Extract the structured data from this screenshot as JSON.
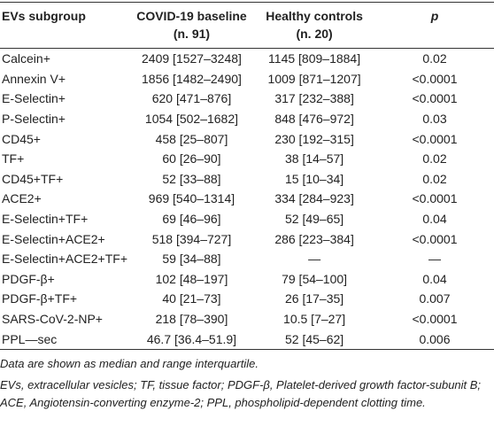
{
  "table": {
    "header": [
      "EVs subgroup",
      "COVID-19 baseline (n. 91)",
      "Healthy controls (n. 20)",
      "p"
    ],
    "rows": [
      [
        "Calcein+",
        "2409 [1527–3248]",
        "1145 [809–1884]",
        "0.02"
      ],
      [
        "Annexin V+",
        "1856 [1482–2490]",
        "1009 [871–1207]",
        "<0.0001"
      ],
      [
        "E-Selectin+",
        "620 [471–876]",
        "317 [232–388]",
        "<0.0001"
      ],
      [
        "P-Selectin+",
        "1054 [502–1682]",
        "848 [476–972]",
        "0.03"
      ],
      [
        "CD45+",
        "458 [25–807]",
        "230 [192–315]",
        "<0.0001"
      ],
      [
        "TF+",
        "60 [26–90]",
        "38 [14–57]",
        "0.02"
      ],
      [
        "CD45+TF+",
        "52 [33–88]",
        "15 [10–34]",
        "0.02"
      ],
      [
        "ACE2+",
        "969 [540–1314]",
        "334 [284–923]",
        "<0.0001"
      ],
      [
        "E-Selectin+TF+",
        "69 [46–96]",
        "52 [49–65]",
        "0.04"
      ],
      [
        "E-Selectin+ACE2+",
        "518 [394–727]",
        "286 [223–384]",
        "<0.0001"
      ],
      [
        "E-Selectin+ACE2+TF+",
        "59 [34–88]",
        "—",
        "—"
      ],
      [
        "PDGF-β+",
        "102 [48–197]",
        "79 [54–100]",
        "0.04"
      ],
      [
        "PDGF-β+TF+",
        "40 [21–73]",
        "26 [17–35]",
        "0.007"
      ],
      [
        "SARS-CoV-2-NP+",
        "218 [78–390]",
        "10.5 [7–27]",
        "<0.0001"
      ],
      [
        "PPL—sec",
        "46.7 [36.4–51.9]",
        "52 [45–62]",
        "0.006"
      ]
    ]
  },
  "notes": [
    "Data are shown as median and range interquartile.",
    "EVs, extracellular vesicles; TF, tissue factor; PDGF-β, Platelet-derived growth factor-subunit B; ACE, Angiotensin-converting enzyme-2; PPL, phospholipid-dependent clotting time."
  ]
}
